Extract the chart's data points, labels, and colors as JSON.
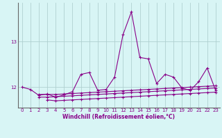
{
  "xlabel": "Windchill (Refroidissement éolien,°C)",
  "xticks": [
    0,
    1,
    2,
    3,
    4,
    5,
    6,
    7,
    8,
    9,
    10,
    11,
    12,
    13,
    14,
    15,
    16,
    17,
    18,
    19,
    20,
    21,
    22,
    23
  ],
  "yticks": [
    12,
    13
  ],
  "bg_color": "#d8f5f5",
  "grid_color": "#b0d0d0",
  "line_color": "#880088",
  "spine_color": "#666666",
  "line1_x": [
    0,
    1,
    2,
    3,
    4,
    5,
    6,
    7,
    8,
    9,
    10,
    11,
    12,
    13,
    14,
    15,
    16,
    17,
    18,
    19,
    20,
    21,
    22,
    23
  ],
  "line1_y": [
    12.0,
    11.95,
    11.82,
    11.85,
    11.78,
    11.83,
    11.9,
    12.28,
    12.32,
    11.93,
    11.95,
    12.22,
    13.15,
    13.65,
    12.65,
    12.62,
    12.08,
    12.28,
    12.22,
    11.98,
    11.93,
    12.12,
    12.42,
    11.93
  ],
  "line2_x": [
    2,
    3,
    4,
    5,
    6,
    7,
    8,
    9,
    10,
    11,
    12,
    13,
    14,
    15,
    16,
    17,
    18,
    19,
    20,
    21,
    22,
    23
  ],
  "line2_y": [
    11.84,
    11.84,
    11.84,
    11.85,
    11.86,
    11.87,
    11.88,
    11.89,
    11.9,
    11.91,
    11.92,
    11.93,
    11.94,
    11.95,
    11.96,
    11.97,
    11.98,
    11.99,
    12.0,
    12.01,
    12.02,
    12.03
  ],
  "line3_x": [
    2,
    3,
    4,
    5,
    6,
    7,
    8,
    9,
    10,
    11,
    12,
    13,
    14,
    15,
    16,
    17,
    18,
    19,
    20,
    21,
    22,
    23
  ],
  "line3_y": [
    11.78,
    11.78,
    11.79,
    11.8,
    11.81,
    11.82,
    11.83,
    11.84,
    11.85,
    11.86,
    11.87,
    11.88,
    11.89,
    11.9,
    11.91,
    11.92,
    11.93,
    11.94,
    11.95,
    11.96,
    11.97,
    11.98
  ],
  "line4_x": [
    3,
    4,
    5,
    6,
    7,
    8,
    9,
    10,
    11,
    12,
    13,
    14,
    15,
    16,
    17,
    18,
    19,
    20,
    21,
    22,
    23
  ],
  "line4_y": [
    11.72,
    11.7,
    11.71,
    11.72,
    11.73,
    11.74,
    11.75,
    11.76,
    11.77,
    11.78,
    11.79,
    11.8,
    11.81,
    11.82,
    11.83,
    11.84,
    11.85,
    11.86,
    11.87,
    11.88,
    11.89
  ],
  "ylim": [
    11.55,
    13.85
  ],
  "xlim": [
    -0.5,
    23.5
  ]
}
